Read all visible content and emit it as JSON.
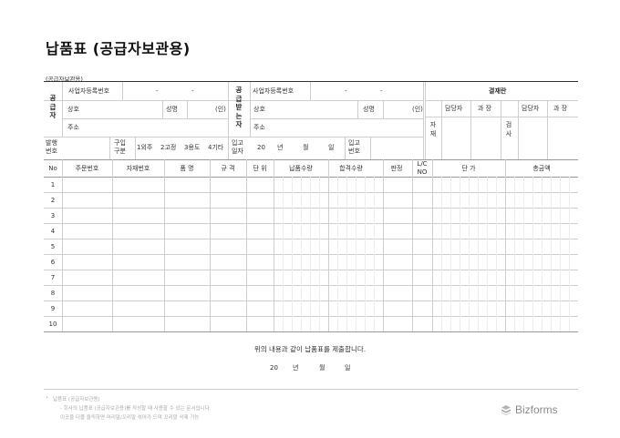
{
  "title": "납품표  (공급자보관용)",
  "subtitle": "(공급자보관용)",
  "supplier": {
    "label": "공급자",
    "reg_no": "사업자등록번호",
    "name": "상호",
    "rep": "성명",
    "seal": "(인)",
    "addr": "주소",
    "dash1": "-",
    "dash2": "-"
  },
  "receiver": {
    "label": "공급받는자",
    "reg_no": "사업자등록번호",
    "name": "상호",
    "rep": "성명",
    "seal": "(인)",
    "addr": "주소",
    "dash1": "-",
    "dash2": "-"
  },
  "approval": {
    "header": "결재란",
    "group1": "자재",
    "group2": "검사",
    "charge1": "담당자",
    "chief1": "과 장",
    "charge2": "담당자",
    "chief2": "과 장"
  },
  "meta": {
    "issue_no": "발행\n번호",
    "purchase_type": "구입\n구분",
    "options": [
      "1외주",
      "2고정",
      "3용도",
      "4기타"
    ],
    "in_date": "입고\n일자",
    "date_year": "20",
    "date_y": "년",
    "date_m": "월",
    "date_d": "일",
    "in_no": "입고\n번호"
  },
  "table": {
    "headers": [
      "No",
      "주문번호",
      "자재번호",
      "품  명",
      "규  격",
      "단 위",
      "납품수량",
      "합격수량",
      "판정",
      "L/C\nNO",
      "단  가",
      "총금액"
    ],
    "rows": [
      "1",
      "2",
      "3",
      "4",
      "5",
      "6",
      "7",
      "8",
      "9",
      "10"
    ]
  },
  "statement": "위의 내용과 같이 납품표를 제출합니다.",
  "sign_date": {
    "year": "20",
    "y": "년",
    "m": "월",
    "d": "일"
  },
  "footer": {
    "bullet": "•",
    "line1": "납품표 (공급자보관용)",
    "line2": "- 회사의 납품표 (공급자보관용)를 작성할 때 사용할 수 있는 문서입니다.",
    "line3": "이곳을 더블 클릭하면 머리말/꼬리말 섞어가 드며 꼬리말 삭제 가능"
  },
  "brand": "Bizforms"
}
